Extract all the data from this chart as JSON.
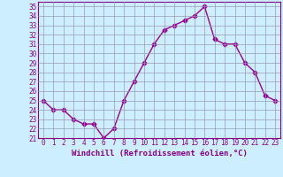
{
  "x": [
    0,
    1,
    2,
    3,
    4,
    5,
    6,
    7,
    8,
    9,
    10,
    11,
    12,
    13,
    14,
    15,
    16,
    17,
    18,
    19,
    20,
    21,
    22,
    23
  ],
  "y": [
    25.0,
    24.0,
    24.0,
    23.0,
    22.5,
    22.5,
    21.0,
    22.0,
    25.0,
    27.0,
    29.0,
    31.0,
    32.5,
    33.0,
    33.5,
    34.0,
    35.0,
    31.5,
    31.0,
    31.0,
    29.0,
    28.0,
    25.5,
    25.0
  ],
  "line_color": "#990099",
  "marker": "D",
  "marker_size": 2.5,
  "bg_color": "#cceeff",
  "grid_color": "#9999bb",
  "xlabel": "Windchill (Refroidissement éolien,°C)",
  "xlim": [
    -0.5,
    23.5
  ],
  "ylim": [
    21,
    35.5
  ],
  "yticks": [
    21,
    22,
    23,
    24,
    25,
    26,
    27,
    28,
    29,
    30,
    31,
    32,
    33,
    34,
    35
  ],
  "xticks": [
    0,
    1,
    2,
    3,
    4,
    5,
    6,
    7,
    8,
    9,
    10,
    11,
    12,
    13,
    14,
    15,
    16,
    17,
    18,
    19,
    20,
    21,
    22,
    23
  ],
  "tick_color": "#880088",
  "tick_fontsize": 5.5,
  "xlabel_fontsize": 6.5,
  "axis_color": "#880088",
  "linewidth": 1.0
}
